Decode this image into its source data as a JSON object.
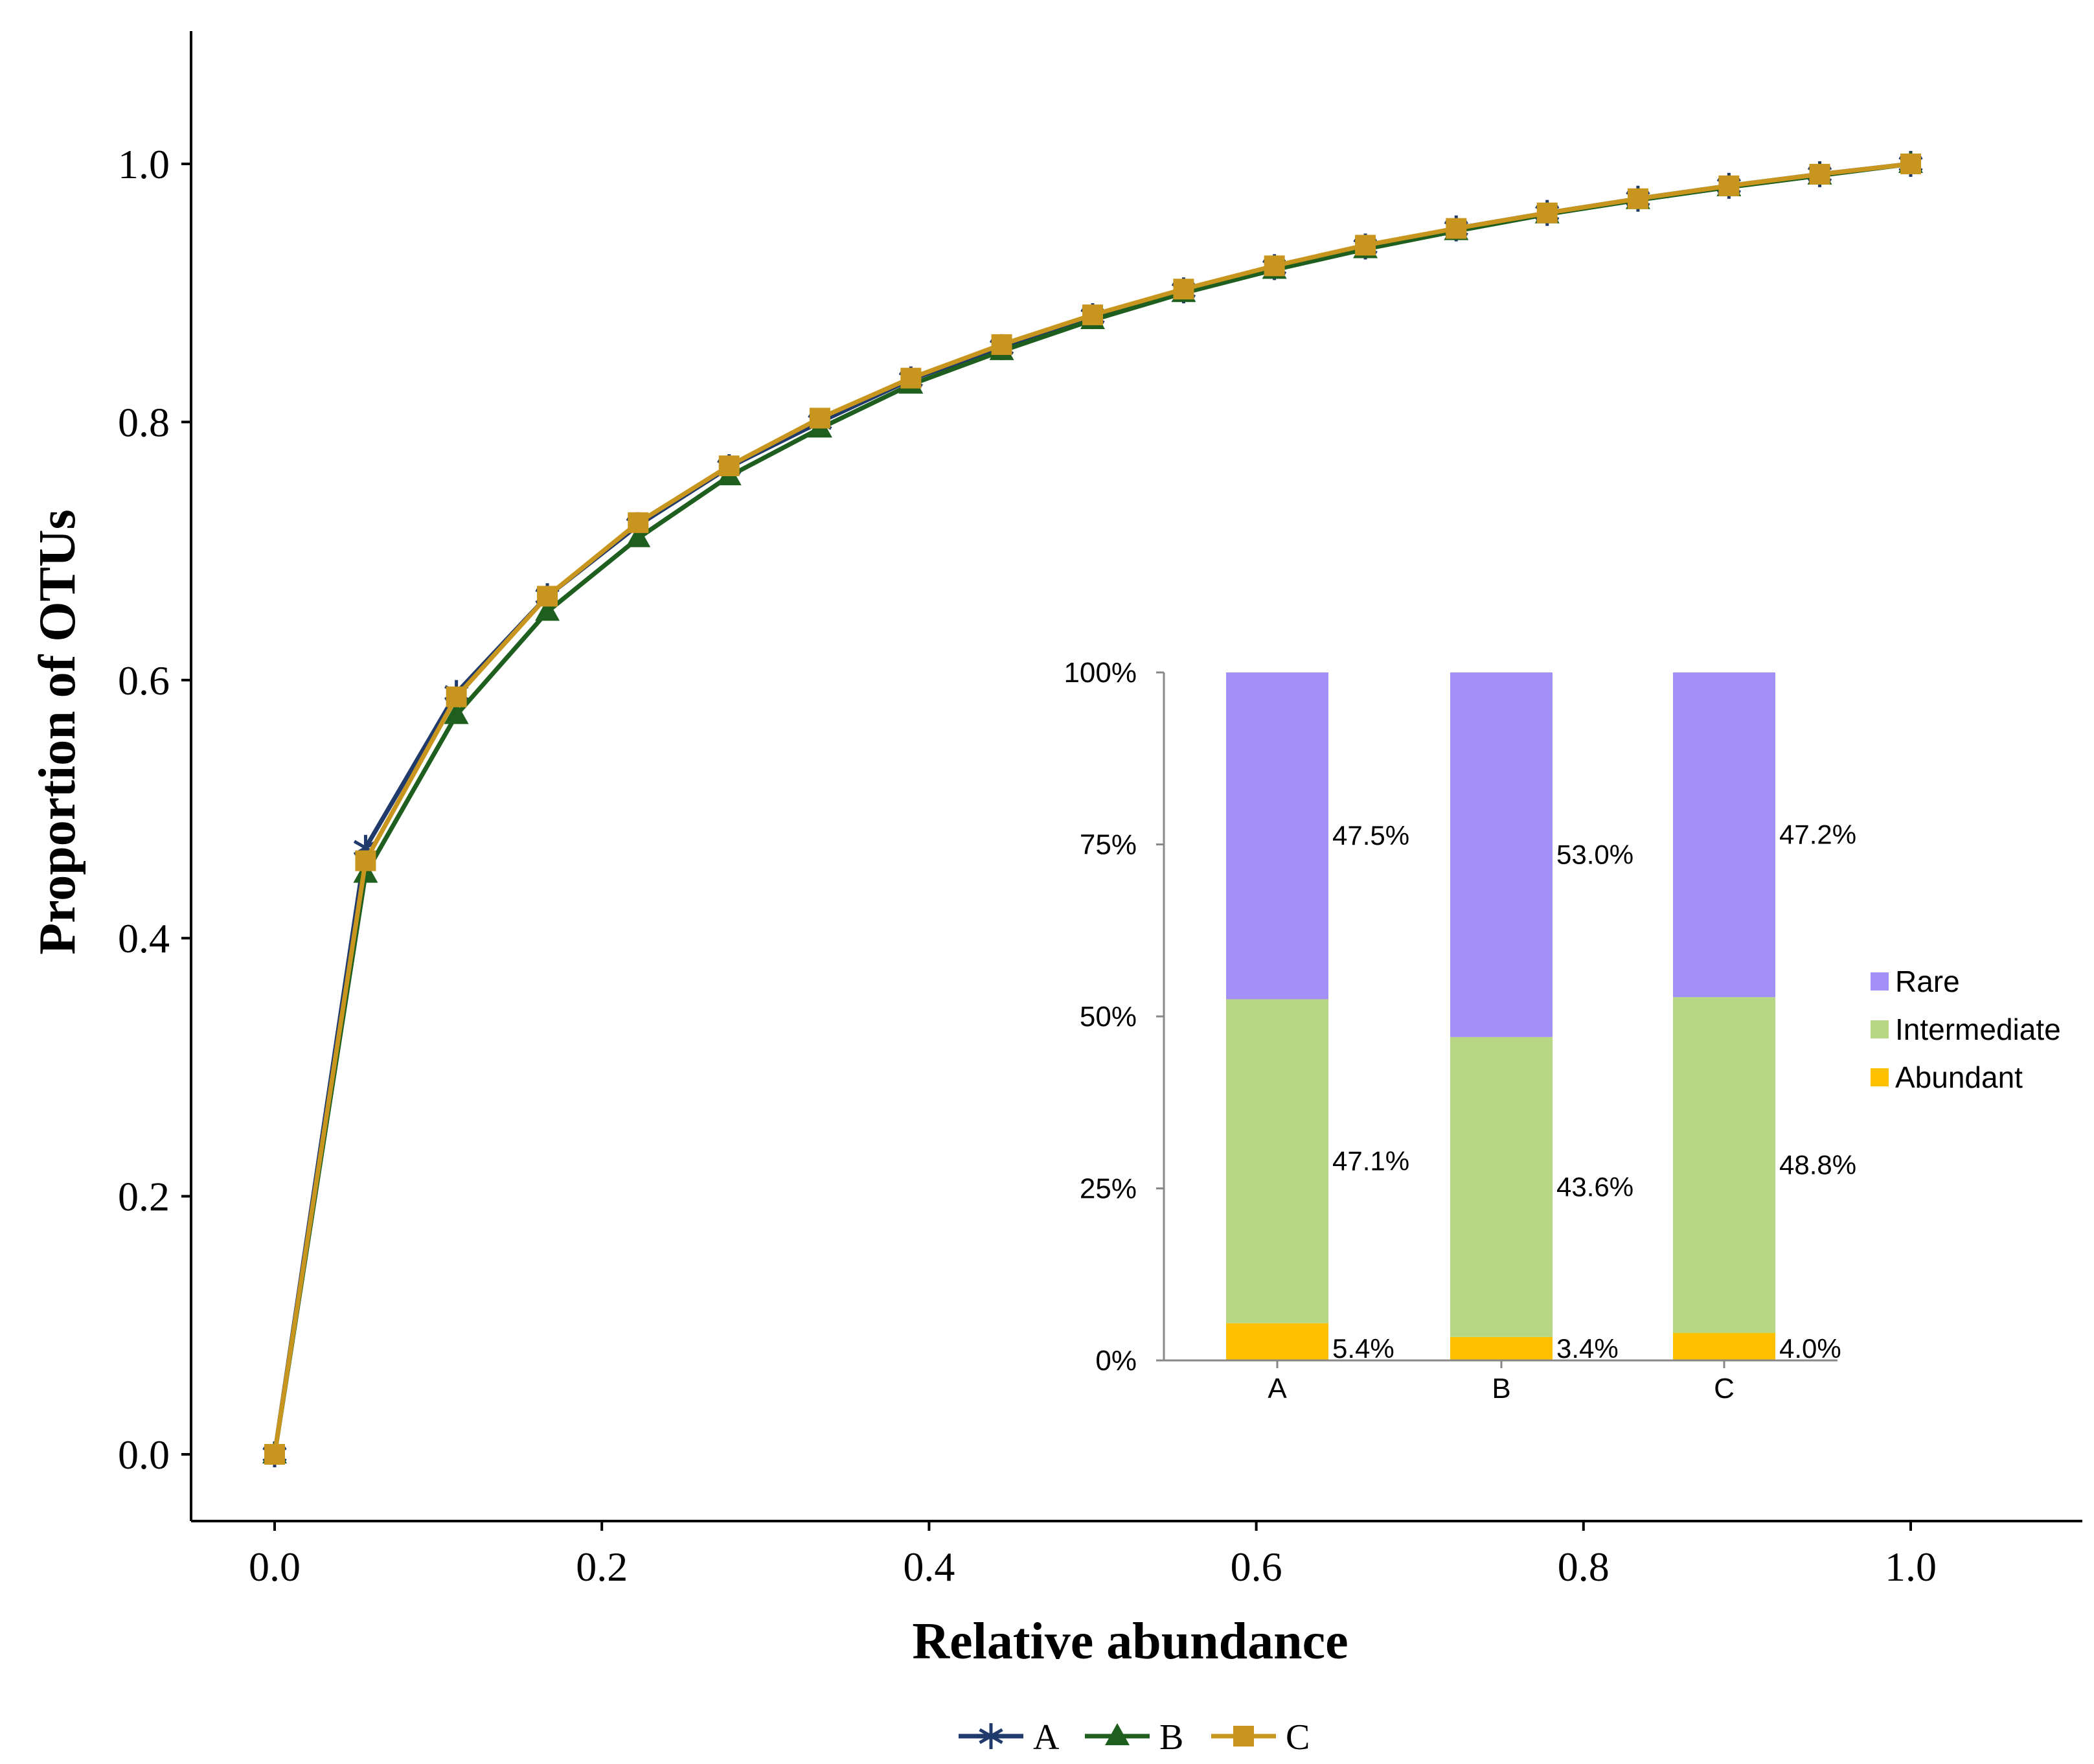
{
  "chart_data": [
    {
      "type": "line",
      "xlabel": "Relative abundance",
      "ylabel": "Proportion of OTUs",
      "xlim": [
        -0.05,
        1.1
      ],
      "ylim": [
        -0.05,
        1.1
      ],
      "xticks": [
        "0.0",
        "0.2",
        "0.4",
        "0.6",
        "0.8",
        "1.0"
      ],
      "yticks": [
        "0.0",
        "0.2",
        "0.4",
        "0.6",
        "0.8",
        "1.0"
      ],
      "x": [
        0.0,
        0.0556,
        0.1111,
        0.1667,
        0.2222,
        0.2778,
        0.3333,
        0.3889,
        0.4444,
        0.5,
        0.5556,
        0.6111,
        0.6667,
        0.7222,
        0.7778,
        0.8333,
        0.8889,
        0.9444,
        1.0
      ],
      "series": [
        {
          "name": "A",
          "marker": "asterisk",
          "color": "#1f3a6b",
          "values": [
            0.0,
            0.47,
            0.59,
            0.665,
            0.72,
            0.765,
            0.8,
            0.833,
            0.858,
            0.882,
            0.902,
            0.92,
            0.936,
            0.95,
            0.962,
            0.973,
            0.983,
            0.992,
            1.0
          ]
        },
        {
          "name": "B",
          "marker": "triangle",
          "color": "#1e5e1e",
          "values": [
            0.0,
            0.45,
            0.573,
            0.653,
            0.71,
            0.758,
            0.795,
            0.829,
            0.855,
            0.879,
            0.9,
            0.918,
            0.934,
            0.948,
            0.961,
            0.972,
            0.982,
            0.991,
            1.0
          ]
        },
        {
          "name": "C",
          "marker": "square",
          "color": "#c8961e",
          "values": [
            0.0,
            0.46,
            0.587,
            0.665,
            0.722,
            0.766,
            0.803,
            0.834,
            0.86,
            0.883,
            0.903,
            0.921,
            0.937,
            0.95,
            0.962,
            0.973,
            0.983,
            0.992,
            1.0
          ]
        }
      ],
      "legend": {
        "position": "bottom",
        "items": [
          "A",
          "B",
          "C"
        ]
      }
    },
    {
      "type": "bar",
      "stacked": true,
      "categories": [
        "A",
        "B",
        "C"
      ],
      "yticks": [
        "0%",
        "25%",
        "50%",
        "75%",
        "100%"
      ],
      "ylim": [
        0,
        100
      ],
      "series": [
        {
          "name": "Abundant",
          "color": "#ffc000",
          "values": [
            5.4,
            3.4,
            4.0
          ],
          "labels": [
            "5.4%",
            "3.4%",
            "4.0%"
          ]
        },
        {
          "name": "Intermediate",
          "color": "#b7d785",
          "values": [
            47.1,
            43.6,
            48.8
          ],
          "labels": [
            "47.1%",
            "43.6%",
            "48.8%"
          ]
        },
        {
          "name": "Rare",
          "color": "#a390f7",
          "values": [
            47.5,
            53.0,
            47.2
          ],
          "labels": [
            "47.5%",
            "53.0%",
            "47.2%"
          ]
        }
      ],
      "legend": {
        "position": "right",
        "items": [
          "Rare",
          "Intermediate",
          "Abundant"
        ]
      }
    }
  ]
}
